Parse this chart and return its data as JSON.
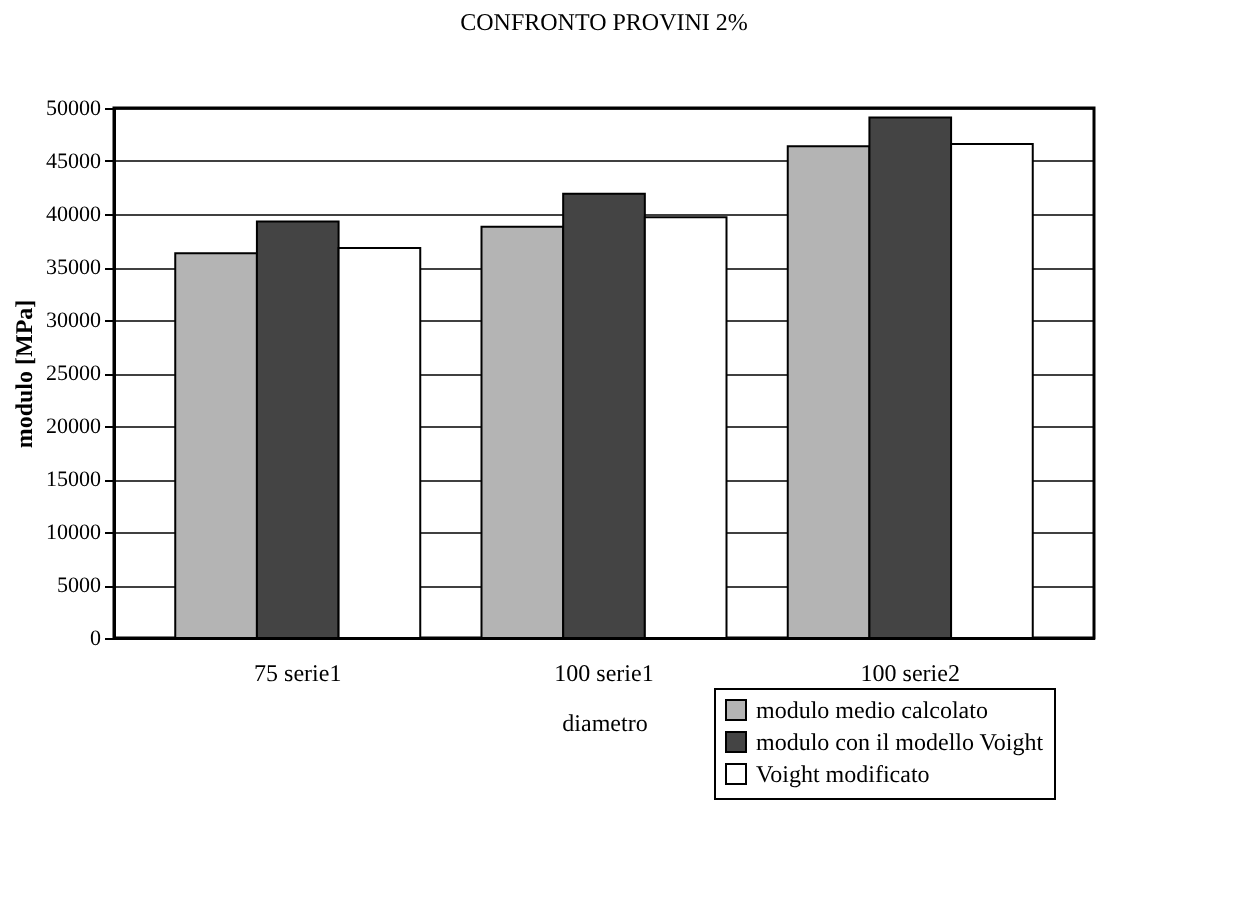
{
  "chart_data": {
    "type": "bar",
    "title": "CONFRONTO PROVINI 2%",
    "xlabel": "diametro",
    "ylabel": "modulo [MPa]",
    "categories": [
      "75 serie1",
      "100 serie1",
      "100 serie2"
    ],
    "series": [
      {
        "name": "modulo medio calcolato",
        "color": "#b4b4b4",
        "values": [
          36300,
          38800,
          46400
        ]
      },
      {
        "name": "modulo con il modello Voight",
        "color": "#444444",
        "values": [
          39300,
          41900,
          49100
        ]
      },
      {
        "name": "Voight modificato",
        "color": "#ffffff",
        "values": [
          36800,
          39700,
          46600
        ]
      }
    ],
    "ylim": [
      0,
      50000
    ],
    "yticks": [
      0,
      5000,
      10000,
      15000,
      20000,
      25000,
      30000,
      35000,
      40000,
      45000,
      50000
    ],
    "grid": "y",
    "legend": "bottom right"
  }
}
